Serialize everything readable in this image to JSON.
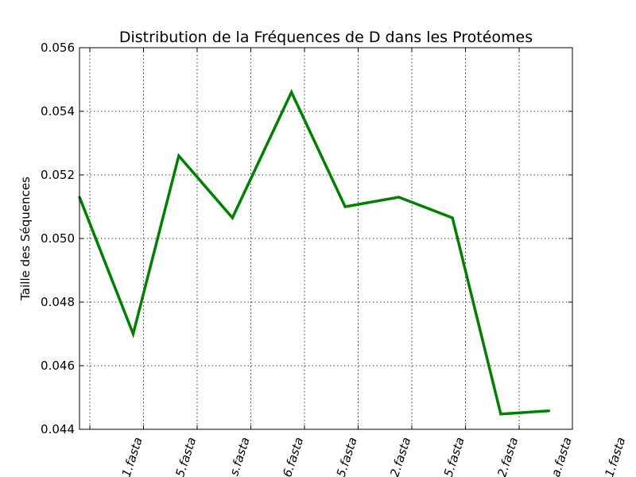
{
  "chart_data": {
    "type": "line",
    "title": "Distribution de la Fréquences de D dans les Protéomes",
    "xlabel": "",
    "ylabel": "Taille des Séquences",
    "ylim": [
      0.044,
      0.056
    ],
    "yticks": [
      "0.044",
      "0.046",
      "0.048",
      "0.050",
      "0.052",
      "0.054",
      "0.056"
    ],
    "xtick_labels": [
      "1.fasta",
      "5.fasta",
      "s.fasta",
      "6.fasta",
      "5.fasta",
      "2.fasta",
      "5.fasta",
      "2.fasta",
      "a.fasta",
      "1.fasta"
    ],
    "grid": true,
    "color": "#008000",
    "series": [
      {
        "x": [
          0.0,
          1.0,
          1.85,
          2.85,
          3.95,
          4.95,
          5.95,
          6.95,
          7.85,
          8.75
        ],
        "values": [
          0.0513,
          0.047,
          0.0526,
          0.05065,
          0.0546,
          0.051,
          0.0513,
          0.05065,
          0.04448,
          0.04458
        ]
      }
    ]
  }
}
